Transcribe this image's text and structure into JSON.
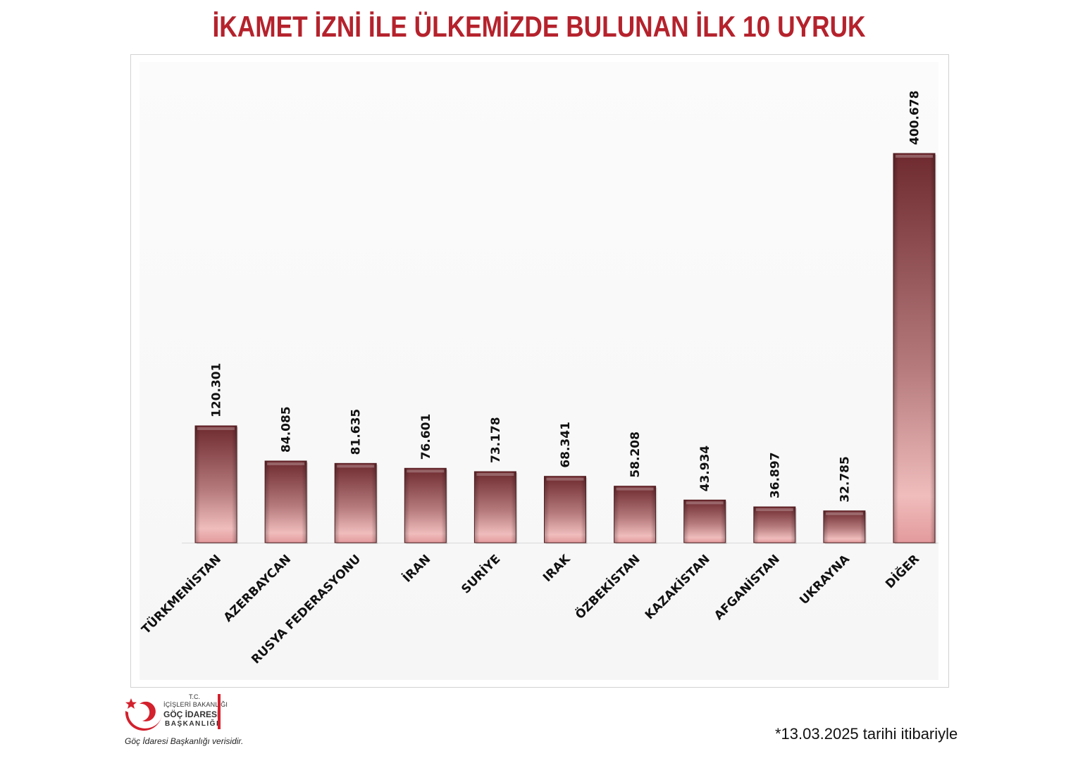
{
  "title": "İKAMET İZNİ İLE ÜLKEMİZDE BULUNAN İLK 10 UYRUK",
  "chart_data": {
    "type": "bar",
    "categories": [
      "TÜRKMENİSTAN",
      "AZERBAYCAN",
      "RUSYA FEDERASYONU",
      "İRAN",
      "SURİYE",
      "IRAK",
      "ÖZBEKİSTAN",
      "KAZAKİSTAN",
      "AFGANİSTAN",
      "UKRAYNA",
      "DİĞER"
    ],
    "values": [
      120301,
      84085,
      81635,
      76601,
      73178,
      68341,
      58208,
      43934,
      36897,
      32785,
      400678
    ],
    "value_labels": [
      "120.301",
      "84.085",
      "81.635",
      "76.601",
      "73.178",
      "68.341",
      "58.208",
      "43.934",
      "36.897",
      "32.785",
      "400.678"
    ],
    "ylim": [
      0,
      400678
    ],
    "grid": false,
    "legend": "none",
    "bar_color_top": "#6e2a2f",
    "bar_color_bottom": "#f2bcbc"
  },
  "logo": {
    "tc": "T.C.",
    "ministry": "İÇİŞLERİ BAKANLIĞI",
    "agency": "GÖÇ İDARESİ",
    "presidency": "BAŞKANLIĞI"
  },
  "source_note": "Göç İdaresi Başkanlığı verisidir.",
  "date_note": "*13.03.2025 tarihi itibariyle"
}
